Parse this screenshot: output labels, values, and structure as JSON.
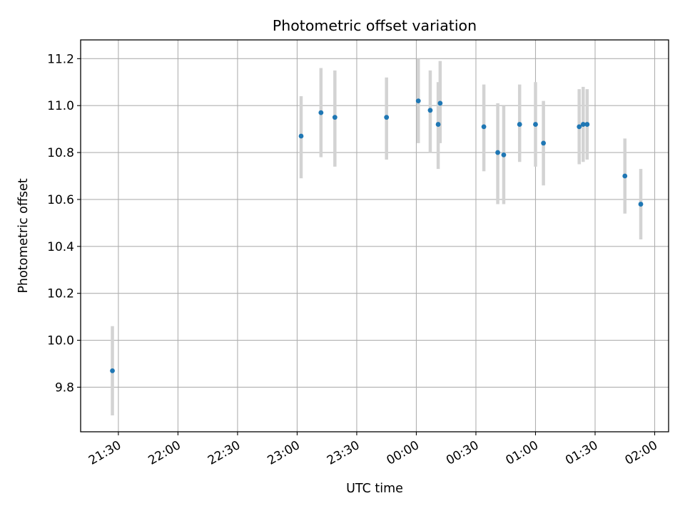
{
  "colors": {
    "point": "#1f77b4",
    "errorbar": "#d3d3d3",
    "grid": "#b0b0b0",
    "background": "#ffffff"
  },
  "chart_data": {
    "type": "scatter",
    "title": "Photometric offset variation",
    "xlabel": "UTC time",
    "ylabel": "Photometric offset",
    "grid": true,
    "x_tick_labels_rotated": true,
    "x_range": [
      "21:11",
      "02:07"
    ],
    "ylim": [
      9.61,
      11.28
    ],
    "x_ticks": [
      "21:30",
      "22:00",
      "22:30",
      "23:00",
      "23:30",
      "00:00",
      "00:30",
      "01:00",
      "01:30",
      "02:00"
    ],
    "y_ticks": [
      9.8,
      10.0,
      10.2,
      10.4,
      10.6,
      10.8,
      11.0,
      11.2
    ],
    "y_tick_labels": [
      "9.8",
      "10.0",
      "10.2",
      "10.4",
      "10.6",
      "10.8",
      "11.0",
      "11.2"
    ],
    "series": [
      {
        "x": [
          "21:27",
          "23:02",
          "23:12",
          "23:19",
          "23:45",
          "00:01",
          "00:07",
          "00:11",
          "00:12",
          "00:34",
          "00:41",
          "00:44",
          "00:52",
          "01:00",
          "01:04",
          "01:22",
          "01:24",
          "01:26",
          "01:45",
          "01:53"
        ],
        "y": [
          9.87,
          10.87,
          10.97,
          10.95,
          10.95,
          11.02,
          10.98,
          10.92,
          11.01,
          10.91,
          10.8,
          10.79,
          10.92,
          10.92,
          10.84,
          10.91,
          10.92,
          10.92,
          10.7,
          10.58
        ],
        "yerr_low": [
          9.68,
          10.69,
          10.78,
          10.74,
          10.77,
          10.84,
          10.8,
          10.73,
          10.84,
          10.72,
          10.58,
          10.58,
          10.76,
          10.74,
          10.66,
          10.75,
          10.76,
          10.77,
          10.54,
          10.43
        ],
        "yerr_high": [
          10.06,
          11.04,
          11.16,
          11.15,
          11.12,
          11.2,
          11.15,
          11.1,
          11.19,
          11.09,
          11.01,
          11.0,
          11.09,
          11.1,
          11.02,
          11.07,
          11.08,
          11.07,
          10.86,
          10.73
        ]
      }
    ]
  }
}
